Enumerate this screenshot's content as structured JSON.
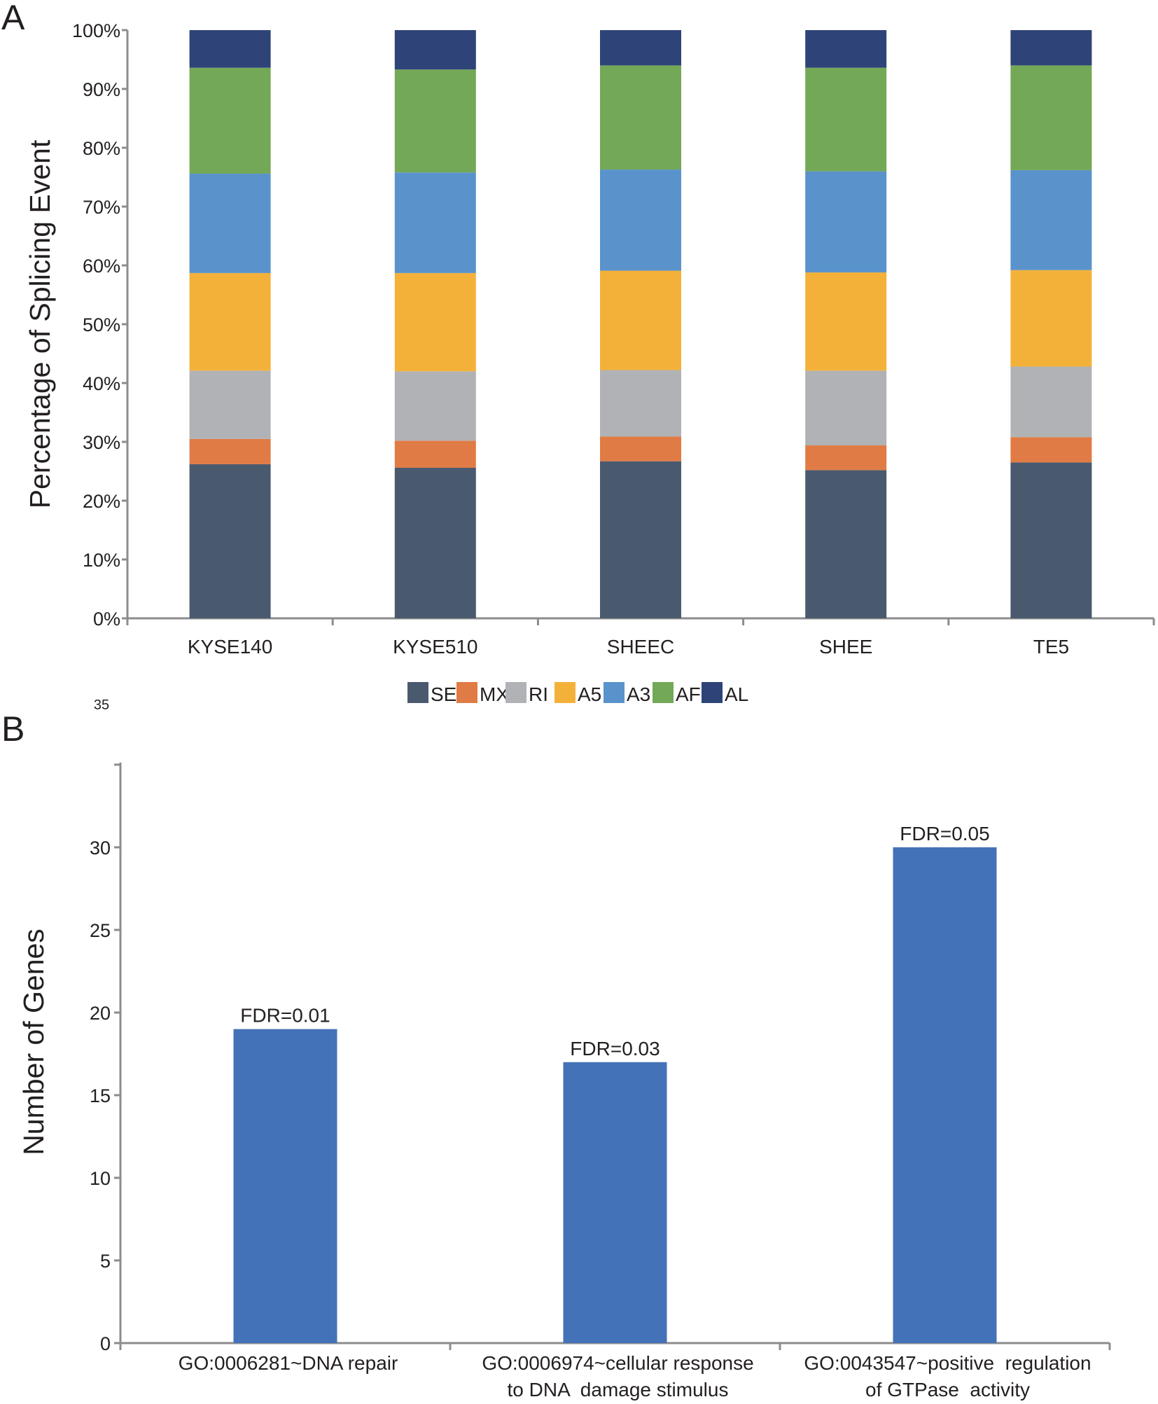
{
  "chart_data": [
    {
      "panel": "A",
      "type": "bar",
      "stacked": true,
      "categories": [
        "KYSE140",
        "KYSE510",
        "SHEEC",
        "SHEE",
        "TE5"
      ],
      "ylabel": "Percentage of Splicing Event",
      "xlabel": "",
      "ylim": [
        0,
        100
      ],
      "yticks": [
        0,
        10,
        20,
        30,
        40,
        50,
        60,
        70,
        80,
        90,
        100
      ],
      "ytick_labels": [
        "0%",
        "10%",
        "20%",
        "30%",
        "40%",
        "50%",
        "60%",
        "70%",
        "80%",
        "90%",
        "100%"
      ],
      "legend_position": "bottom",
      "grid": false,
      "series": [
        {
          "name": "SE",
          "color": "#4a5a6e",
          "values": [
            26.2,
            25.6,
            26.7,
            25.2,
            26.5
          ]
        },
        {
          "name": "MX",
          "color": "#e07b45",
          "values": [
            4.3,
            4.6,
            4.2,
            4.2,
            4.3
          ]
        },
        {
          "name": "RI",
          "color": "#b1b2b5",
          "values": [
            11.6,
            11.8,
            11.3,
            12.7,
            12.0
          ]
        },
        {
          "name": "A5",
          "color": "#f4b13a",
          "values": [
            16.6,
            16.7,
            16.9,
            16.7,
            16.4
          ]
        },
        {
          "name": "A3",
          "color": "#5a93cb",
          "values": [
            16.9,
            17.1,
            17.2,
            17.2,
            17.0
          ]
        },
        {
          "name": "AF",
          "color": "#73a857",
          "values": [
            18.0,
            17.5,
            17.7,
            17.6,
            17.8
          ]
        },
        {
          "name": "AL",
          "color": "#2e4478",
          "values": [
            6.4,
            6.7,
            6.0,
            6.4,
            6.0
          ]
        }
      ]
    },
    {
      "panel": "B",
      "type": "bar",
      "categories": [
        [
          "GO:0006281~DNA repair"
        ],
        [
          "GO:0006974~cellular response",
          "to DNA  damage stimulus"
        ],
        [
          "GO:0043547~positive  regulation",
          "of GTPase  activity"
        ]
      ],
      "values": [
        19,
        17,
        30
      ],
      "data_labels": [
        "FDR=0.01",
        "FDR=0.03",
        "FDR=0.05"
      ],
      "color": "#4472b8",
      "ylabel": "Number of Genes",
      "xlabel": "",
      "ylim": [
        0,
        35
      ],
      "yticks": [
        0,
        5,
        10,
        15,
        20,
        25,
        30,
        35
      ],
      "ytick_labels": [
        "0",
        "5",
        "10",
        "15",
        "20",
        "25",
        "30",
        "35"
      ],
      "grid": false
    }
  ],
  "panel_labels": {
    "a": "A",
    "b": "B"
  }
}
